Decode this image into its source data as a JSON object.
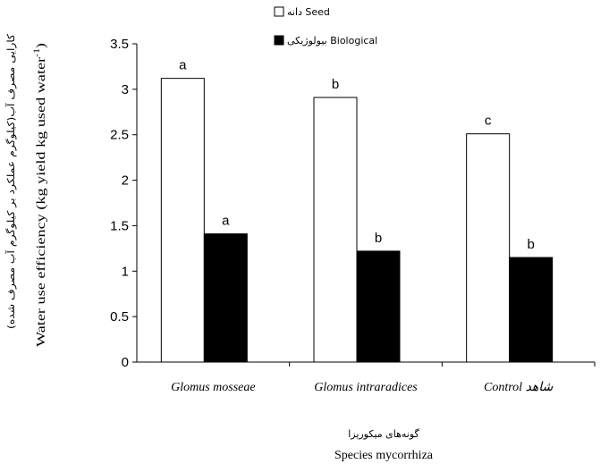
{
  "chart_data": {
    "type": "bar",
    "categories": [
      "Glomus mosseae",
      "Glomus intraradices",
      "Control شاهد"
    ],
    "series": [
      {
        "name": "دانه Seed",
        "values": [
          3.12,
          2.91,
          2.51
        ],
        "letters": [
          "a",
          "b",
          "c"
        ],
        "color": "#ffffff"
      },
      {
        "name": "بیولوژیکی Biological",
        "values": [
          1.41,
          1.22,
          1.15
        ],
        "letters": [
          "a",
          "b",
          "b"
        ],
        "color": "#000000"
      }
    ],
    "y_ticks": [
      "0",
      "0.5",
      "1",
      "1.5",
      "2",
      "2.5",
      "3",
      "3.5"
    ],
    "ylim": [
      0,
      3.5
    ],
    "xlabel_fa": "گونه‌های میکوریزا",
    "xlabel": "Species mycorrhiza",
    "ylabel_fa": "کارایی مصرف آب(کیلوگرم عملکرد بر کیلوگرم آب مصرف شده)",
    "ylabel": "Water use efficiency (kg yield kg used water",
    "ylabel_sup": "-1",
    "ylabel_close": ")",
    "legend_position": "top"
  }
}
